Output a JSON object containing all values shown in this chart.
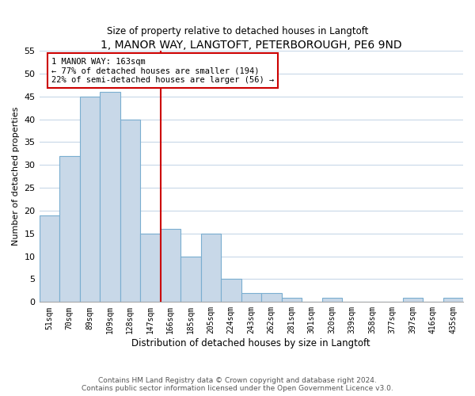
{
  "title": "1, MANOR WAY, LANGTOFT, PETERBOROUGH, PE6 9ND",
  "subtitle": "Size of property relative to detached houses in Langtoft",
  "xlabel": "Distribution of detached houses by size in Langtoft",
  "ylabel": "Number of detached properties",
  "bar_color": "#c8d8e8",
  "bar_edge_color": "#7aaed0",
  "bin_labels": [
    "51sqm",
    "70sqm",
    "89sqm",
    "109sqm",
    "128sqm",
    "147sqm",
    "166sqm",
    "185sqm",
    "205sqm",
    "224sqm",
    "243sqm",
    "262sqm",
    "281sqm",
    "301sqm",
    "320sqm",
    "339sqm",
    "358sqm",
    "377sqm",
    "397sqm",
    "416sqm",
    "435sqm"
  ],
  "bar_values": [
    19,
    32,
    45,
    46,
    40,
    15,
    16,
    10,
    15,
    5,
    2,
    2,
    1,
    0,
    1,
    0,
    0,
    0,
    1,
    0,
    1
  ],
  "ylim": [
    0,
    55
  ],
  "yticks": [
    0,
    5,
    10,
    15,
    20,
    25,
    30,
    35,
    40,
    45,
    50,
    55
  ],
  "property_line_label": "1 MANOR WAY: 163sqm",
  "annotation_line1": "← 77% of detached houses are smaller (194)",
  "annotation_line2": "22% of semi-detached houses are larger (56) →",
  "footer_line1": "Contains HM Land Registry data © Crown copyright and database right 2024.",
  "footer_line2": "Contains public sector information licensed under the Open Government Licence v3.0.",
  "annotation_box_color": "#ffffff",
  "annotation_box_edge_color": "#cc0000",
  "property_line_color": "#cc0000",
  "background_color": "#ffffff",
  "grid_color": "#c8d8e8"
}
